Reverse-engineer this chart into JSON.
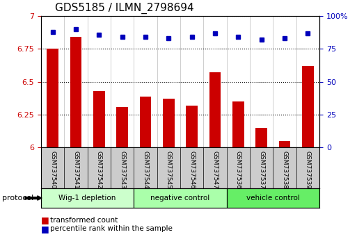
{
  "title": "GDS5185 / ILMN_2798694",
  "samples": [
    "GSM737540",
    "GSM737541",
    "GSM737542",
    "GSM737543",
    "GSM737544",
    "GSM737545",
    "GSM737546",
    "GSM737547",
    "GSM737536",
    "GSM737537",
    "GSM737538",
    "GSM737539"
  ],
  "bar_values": [
    6.75,
    6.84,
    6.43,
    6.31,
    6.39,
    6.37,
    6.32,
    6.57,
    6.35,
    6.15,
    6.05,
    6.62
  ],
  "dot_values": [
    88,
    90,
    86,
    84,
    84,
    83,
    84,
    87,
    84,
    82,
    83,
    87
  ],
  "ylim_left": [
    6.0,
    7.0
  ],
  "ylim_right": [
    0,
    100
  ],
  "yticks_left": [
    6.0,
    6.25,
    6.5,
    6.75,
    7.0
  ],
  "yticks_right": [
    0,
    25,
    50,
    75,
    100
  ],
  "bar_color": "#cc0000",
  "dot_color": "#0000bb",
  "bar_bottom": 6.0,
  "groups": [
    {
      "label": "Wig-1 depletion",
      "start": 0,
      "end": 4,
      "color": "#ccffcc"
    },
    {
      "label": "negative control",
      "start": 4,
      "end": 8,
      "color": "#aaffaa"
    },
    {
      "label": "vehicle control",
      "start": 8,
      "end": 12,
      "color": "#66ee66"
    }
  ],
  "protocol_label": "protocol",
  "legend_bar_label": "transformed count",
  "legend_dot_label": "percentile rank within the sample",
  "tick_label_color_left": "#cc0000",
  "tick_label_color_right": "#0000bb",
  "title_fontsize": 11,
  "axis_fontsize": 8,
  "sample_label_color": "#000000",
  "sample_box_color": "#cccccc",
  "bar_width": 0.5
}
